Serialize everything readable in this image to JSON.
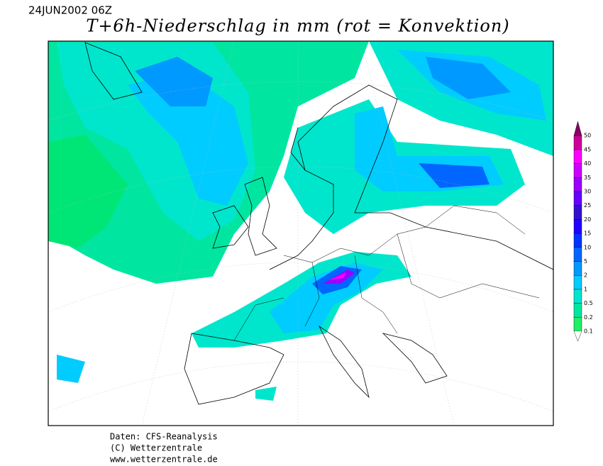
{
  "header": {
    "date": "24JUN2002 06Z",
    "title": "T+6h-Niederschlag in mm (rot = Konvektion)"
  },
  "legend": {
    "levels": [
      {
        "value": 0.1,
        "color": "#22ee66"
      },
      {
        "value": 0.2,
        "color": "#00e6a0"
      },
      {
        "value": 0.5,
        "color": "#00e6cc"
      },
      {
        "value": 1,
        "color": "#00ccff"
      },
      {
        "value": 2,
        "color": "#0099ff"
      },
      {
        "value": 5,
        "color": "#0066ff"
      },
      {
        "value": 10,
        "color": "#0033ff"
      },
      {
        "value": 15,
        "color": "#2200ff"
      },
      {
        "value": 20,
        "color": "#3311cc"
      },
      {
        "value": 25,
        "color": "#6600ff"
      },
      {
        "value": 30,
        "color": "#9900ff"
      },
      {
        "value": 35,
        "color": "#cc00ff"
      },
      {
        "value": 40,
        "color": "#ff00ff"
      },
      {
        "value": 45,
        "color": "#cc0099"
      },
      {
        "value": 50,
        "color": "#880066"
      }
    ]
  },
  "footer": [
    "Daten: CFS-Reanalysis",
    "(C) Wetterzentrale",
    "www.wetterzentrale.de"
  ]
}
